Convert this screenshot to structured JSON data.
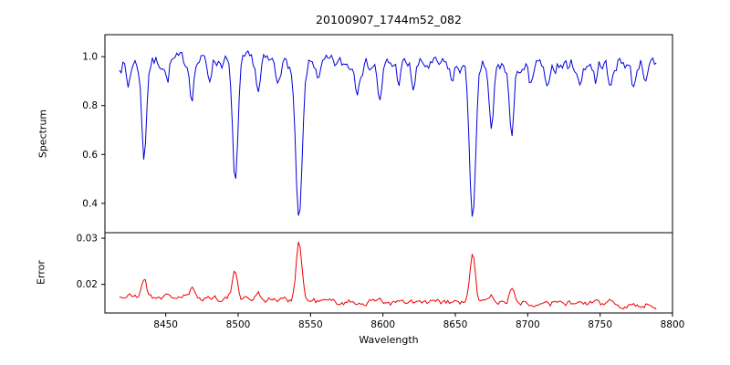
{
  "chart": {
    "title": "20100907_1744m52_082",
    "xlabel": "Wavelength",
    "x_range": [
      8408,
      8800
    ],
    "x_ticks": [
      8450,
      8500,
      8550,
      8600,
      8650,
      8700,
      8750,
      8800
    ],
    "frame_color": "#000000",
    "panels": [
      {
        "name": "spectrum",
        "ylabel": "Spectrum",
        "color": "#0000dd",
        "y_ticks": [
          0.4,
          0.6,
          0.8,
          1.0
        ],
        "y_tick_decimals": 1,
        "y_range": [
          0.28,
          1.09
        ]
      },
      {
        "name": "error",
        "ylabel": "Error",
        "color": "#ee0000",
        "y_ticks": [
          0.02,
          0.03
        ],
        "y_tick_decimals": 2,
        "y_range": [
          0.0138,
          0.0312
        ]
      }
    ]
  },
  "chart_data": {
    "type": "line",
    "title": "20100907_1744m52_082",
    "xlabel": "Wavelength",
    "x_start": 8418,
    "x_end": 8790,
    "x_step": 1.2,
    "series": [
      {
        "name": "Spectrum",
        "color": "#0000dd",
        "continuum": 0.97,
        "noise": 0.027,
        "features_note": "absorption dips: [center_wavelength, fractional_depth, sigma]",
        "features": [
          [
            8424,
            0.1,
            1.2
          ],
          [
            8435,
            0.4,
            1.6
          ],
          [
            8451,
            0.08,
            1.2
          ],
          [
            8468,
            0.14,
            1.4
          ],
          [
            8480,
            0.07,
            1.2
          ],
          [
            8498,
            0.5,
            1.9
          ],
          [
            8514,
            0.13,
            1.3
          ],
          [
            8527,
            0.07,
            1.2
          ],
          [
            8542,
            0.66,
            2.3
          ],
          [
            8556,
            0.06,
            1.2
          ],
          [
            8582,
            0.1,
            1.3
          ],
          [
            8598,
            0.16,
            1.5
          ],
          [
            8611,
            0.07,
            1.2
          ],
          [
            8621,
            0.1,
            1.3
          ],
          [
            8648,
            0.07,
            1.2
          ],
          [
            8662,
            0.65,
            2.1
          ],
          [
            8675,
            0.28,
            1.5
          ],
          [
            8689,
            0.3,
            1.6
          ],
          [
            8702,
            0.1,
            1.3
          ],
          [
            8713,
            0.12,
            1.3
          ],
          [
            8736,
            0.1,
            1.3
          ],
          [
            8747,
            0.08,
            1.2
          ],
          [
            8757,
            0.12,
            1.4
          ],
          [
            8773,
            0.11,
            1.3
          ],
          [
            8782,
            0.09,
            1.2
          ]
        ]
      },
      {
        "name": "Error",
        "color": "#ee0000",
        "baseline_start": 0.0172,
        "baseline_end": 0.0154,
        "noise": 0.0006,
        "features_note": "error spikes: [center_wavelength, amplitude, sigma]",
        "features": [
          [
            8435,
            0.0042,
            1.6
          ],
          [
            8468,
            0.0015,
            1.4
          ],
          [
            8498,
            0.0055,
            1.9
          ],
          [
            8514,
            0.0018,
            1.3
          ],
          [
            8542,
            0.0128,
            2.0
          ],
          [
            8598,
            0.0012,
            1.5
          ],
          [
            8662,
            0.0105,
            1.8
          ],
          [
            8675,
            0.0018,
            1.5
          ],
          [
            8689,
            0.0028,
            1.6
          ],
          [
            8713,
            0.001,
            1.3
          ],
          [
            8757,
            0.0008,
            1.3
          ]
        ]
      }
    ]
  }
}
